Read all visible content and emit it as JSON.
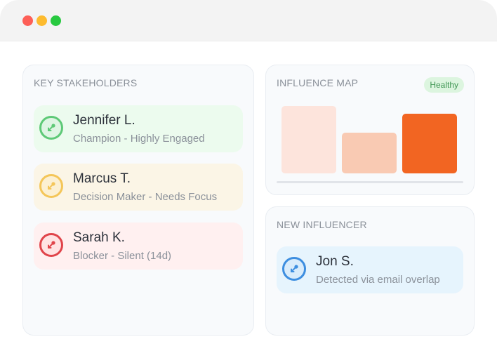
{
  "window": {
    "controls": [
      "close",
      "minimize",
      "maximize"
    ]
  },
  "stakeholders": {
    "title": "KEY STAKEHOLDERS",
    "people": [
      {
        "name": "Jennifer L.",
        "subtitle": "Champion - Highly Engaged",
        "status": "champion",
        "color": "#5ec977",
        "icon": "arrow-up-right-icon"
      },
      {
        "name": "Marcus T.",
        "subtitle": "Decision Maker - Needs Focus",
        "status": "decision-maker",
        "color": "#f4c659",
        "icon": "arrow-up-right-icon"
      },
      {
        "name": "Sarah K.",
        "subtitle": "Blocker - Silent (14d)",
        "status": "blocker",
        "color": "#e0444a",
        "icon": "arrow-up-right-icon"
      }
    ]
  },
  "influence_map": {
    "title": "INFLUENCE MAP",
    "badge": "Healthy",
    "badge_color": "#3f9653",
    "bars": [
      {
        "level": 0.86,
        "color": "#fde4dc"
      },
      {
        "level": 0.52,
        "color": "#f9cab3"
      },
      {
        "level": 0.76,
        "color": "#f26522"
      }
    ]
  },
  "new_influencer": {
    "title": "NEW INFLUENCER",
    "person": {
      "name": "Jon S.",
      "subtitle": "Detected via email overlap",
      "color": "#3d8ee0",
      "icon": "arrow-up-right-icon"
    }
  }
}
